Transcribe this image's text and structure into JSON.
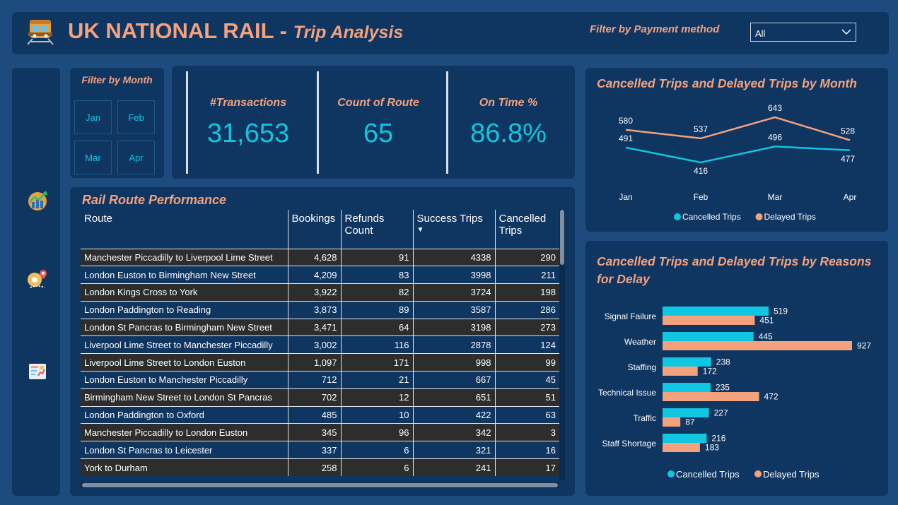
{
  "header": {
    "title": "UK NATIONAL RAIL",
    "separator": " - ",
    "subtitle": "Trip Analysis",
    "filter_label": "Filter by Payment method",
    "filter_value": "All"
  },
  "month_filter": {
    "title": "Filter by Month",
    "months": [
      "Jan",
      "Feb",
      "Mar",
      "Apr"
    ]
  },
  "kpis": [
    {
      "label": "#Transactions",
      "value": "31,653"
    },
    {
      "label": "Count of Route",
      "value": "65"
    },
    {
      "label": "On Time %",
      "value": "86.8%"
    }
  ],
  "route_table": {
    "title": "Rail Route Performance",
    "columns": [
      "Route",
      "Bookings",
      "Refunds Count",
      "Success Trips",
      "Cancelled Trips"
    ],
    "sorted_column": "Success Trips",
    "rows": [
      [
        "Manchester Piccadilly to Liverpool Lime Street",
        "4,628",
        "91",
        "4338",
        "290"
      ],
      [
        "London Euston to Birmingham New Street",
        "4,209",
        "83",
        "3998",
        "211"
      ],
      [
        "London Kings Cross to York",
        "3,922",
        "82",
        "3724",
        "198"
      ],
      [
        "London Paddington to Reading",
        "3,873",
        "89",
        "3587",
        "286"
      ],
      [
        "London St Pancras to Birmingham New Street",
        "3,471",
        "64",
        "3198",
        "273"
      ],
      [
        "Liverpool Lime Street to Manchester Piccadilly",
        "3,002",
        "116",
        "2878",
        "124"
      ],
      [
        "Liverpool Lime Street to London Euston",
        "1,097",
        "171",
        "998",
        "99"
      ],
      [
        "London Euston to Manchester Piccadilly",
        "712",
        "21",
        "667",
        "45"
      ],
      [
        "Birmingham New Street to London St Pancras",
        "702",
        "12",
        "651",
        "51"
      ],
      [
        "London Paddington to Oxford",
        "485",
        "10",
        "422",
        "63"
      ],
      [
        "Manchester Piccadilly to London Euston",
        "345",
        "96",
        "342",
        "3"
      ],
      [
        "London St Pancras to Leicester",
        "337",
        "6",
        "321",
        "16"
      ],
      [
        "York to Durham",
        "258",
        "6",
        "241",
        "17"
      ]
    ]
  },
  "colors": {
    "accent": "#f4a27e",
    "cyan": "#10c6e0",
    "panel": "#0f3561",
    "background": "#1e4b7e"
  },
  "nav_icons": [
    "trend-chart-icon",
    "map-pin-icon",
    "report-icon"
  ],
  "chart_data": [
    {
      "type": "line",
      "title": "Cancelled Trips and Delayed Trips by Month",
      "categories": [
        "Jan",
        "Feb",
        "Mar",
        "Apr"
      ],
      "series": [
        {
          "name": "Cancelled Trips",
          "values": [
            491,
            416,
            496,
            477
          ],
          "color": "#10c6e0"
        },
        {
          "name": "Delayed Trips",
          "values": [
            580,
            537,
            643,
            528
          ],
          "color": "#f4a27e"
        }
      ],
      "legend_position": "bottom"
    },
    {
      "type": "bar",
      "orientation": "horizontal",
      "title": "Cancelled Trips and Delayed Trips by Reasons for Delay",
      "categories": [
        "Signal Failure",
        "Weather",
        "Staffing",
        "Technical Issue",
        "Traffic",
        "Staff Shortage"
      ],
      "series": [
        {
          "name": "Cancelled Trips",
          "values": [
            519,
            445,
            238,
            235,
            227,
            216
          ],
          "color": "#10c6e0"
        },
        {
          "name": "Delayed Trips",
          "values": [
            451,
            927,
            172,
            472,
            87,
            183
          ],
          "color": "#f4a27e"
        }
      ],
      "legend_position": "bottom"
    }
  ]
}
